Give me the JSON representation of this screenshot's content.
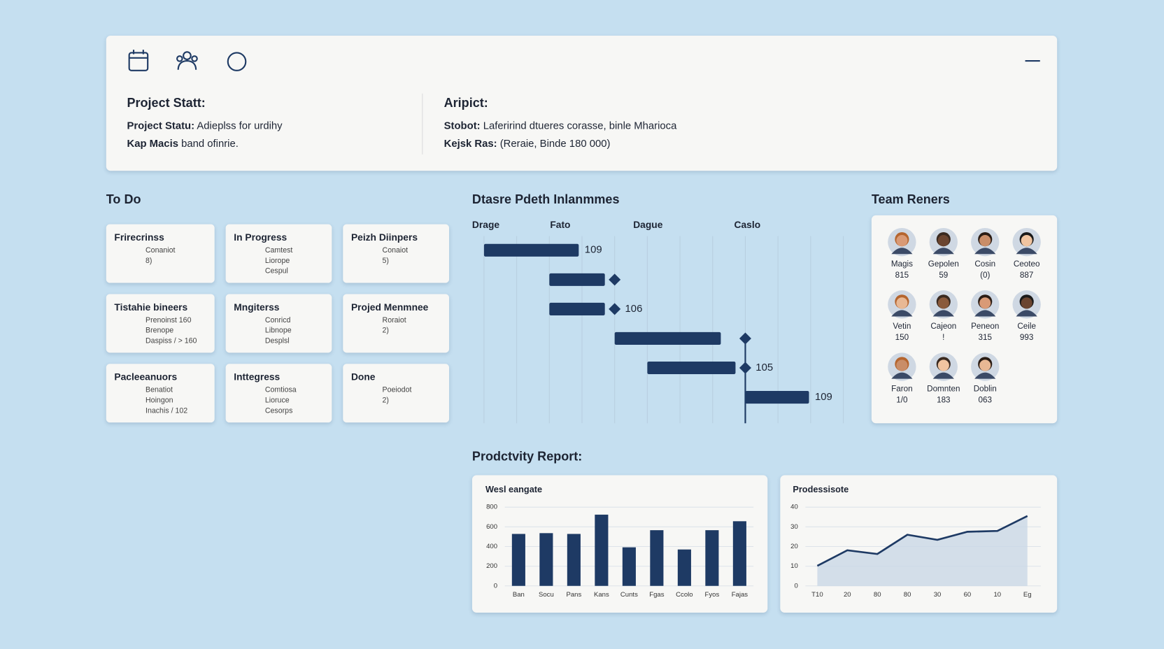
{
  "header": {
    "left": {
      "title": "Project Statt:",
      "lines": [
        {
          "label": "Project Statu:",
          "text": "Adieplss for urdihy"
        },
        {
          "label": "Kap Macis",
          "text": "band ofinrie."
        }
      ]
    },
    "right": {
      "title": "Aripict:",
      "lines": [
        {
          "label": "Stobot:",
          "text": "Laferirind dtueres corasse, binle Mharioca"
        },
        {
          "label": "Kejsk Ras:",
          "text": "(Reraie, Binde 180 000)"
        }
      ]
    }
  },
  "todo": {
    "title": "To Do",
    "cards": [
      {
        "title": "Frirecrinss",
        "lines": [
          "Conaniot",
          "8)"
        ]
      },
      {
        "title": "In Progress",
        "lines": [
          "Camtest",
          "Liorope",
          "Cespul"
        ]
      },
      {
        "title": "Peizh Diinpers",
        "lines": [
          "Conaiot",
          "5)"
        ]
      },
      {
        "title": "Tistahie bineers",
        "lines": [
          "Prenoinst 160",
          "Brenope",
          "Daspiss / > 160"
        ]
      },
      {
        "title": "Mngiterss",
        "lines": [
          "Conricd",
          "Libnope",
          "Desplsl"
        ]
      },
      {
        "title": "Projed Menmnee",
        "lines": [
          "Roraiot",
          "2)"
        ]
      },
      {
        "title": "Pacleeanuors",
        "lines": [
          "Benatiot",
          "Hoingon",
          "Inachis / 102"
        ]
      },
      {
        "title": "Inttegress",
        "lines": [
          "Comtiosa",
          "Lioruce",
          "Cesorps"
        ]
      },
      {
        "title": "Done",
        "lines": [
          "Poeiodot",
          "2)"
        ]
      }
    ]
  },
  "gantt": {
    "title": "Dtasre Pdeth Inlanmmes",
    "columns": [
      "Drage",
      "Fato",
      "Dague",
      "Caslo"
    ],
    "xlim": [
      0,
      11
    ],
    "color": "#1e3a64",
    "tasks": [
      {
        "start": 0,
        "end": 2.9,
        "label": "109"
      },
      {
        "start": 2,
        "end": 3.7,
        "milestone": 4
      },
      {
        "start": 2,
        "end": 3.7,
        "milestone": 4,
        "label": "106"
      },
      {
        "start": 4,
        "end": 7.25,
        "milestone": 8
      },
      {
        "start": 5,
        "end": 7.7,
        "milestone": 8,
        "label": "105"
      },
      {
        "start": 8,
        "end": 9.95,
        "label": "109"
      }
    ]
  },
  "team": {
    "title": "Team Reners",
    "members": [
      {
        "name": "Magis",
        "value": "815"
      },
      {
        "name": "Gepolen",
        "value": "59"
      },
      {
        "name": "Cosin",
        "value": "(0)"
      },
      {
        "name": "Ceoteo",
        "value": "887"
      },
      {
        "name": "Vetin",
        "value": "150"
      },
      {
        "name": "Cajeon",
        "value": "!"
      },
      {
        "name": "Peneon",
        "value": "315"
      },
      {
        "name": "Ceile",
        "value": "993"
      },
      {
        "name": "Faron",
        "value": "1/0"
      },
      {
        "name": "Domnten",
        "value": "183"
      },
      {
        "name": "Doblin",
        "value": "063"
      }
    ]
  },
  "report": {
    "title": "Prodctvity Report:"
  },
  "chart_data": [
    {
      "type": "bar",
      "title": "Wesl eangate",
      "categories": [
        "Ban",
        "Socu",
        "Pans",
        "Kans",
        "Cunts",
        "Fgas",
        "Ccolo",
        "Fyos",
        "Fajas"
      ],
      "values": [
        528,
        536,
        528,
        724,
        392,
        566,
        370,
        566,
        657
      ],
      "color": "#1e3a64",
      "ylim": [
        0,
        800
      ],
      "yticks": [
        0,
        200,
        400,
        600,
        800
      ],
      "grid": true
    },
    {
      "type": "line",
      "title": "Prodessisote",
      "categories": [
        "T10",
        "20",
        "80",
        "80",
        "30",
        "60",
        "10",
        "Eg"
      ],
      "values": [
        10.2,
        18.1,
        16.2,
        26,
        23.4,
        27.5,
        27.9,
        35.5
      ],
      "color": "#1e3a64",
      "ylim": [
        0,
        40
      ],
      "yticks": [
        0,
        10,
        20,
        30,
        40
      ],
      "grid": true
    }
  ]
}
